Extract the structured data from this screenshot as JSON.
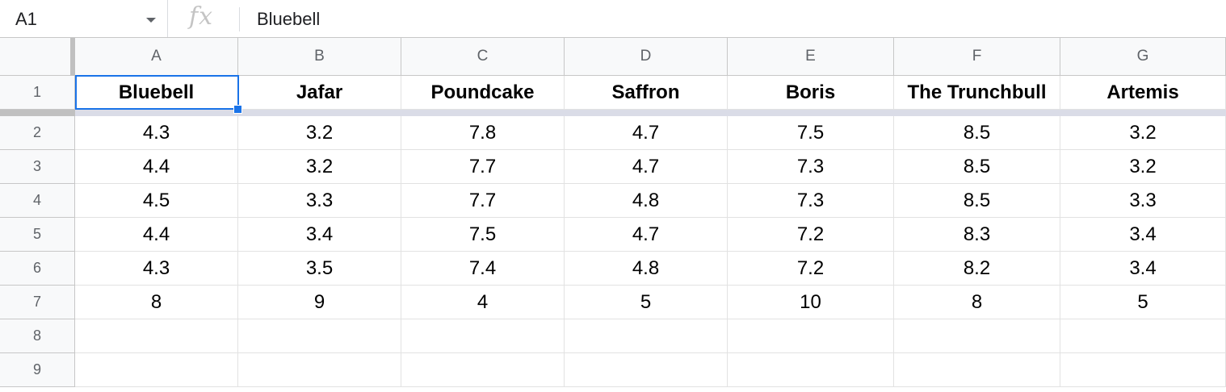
{
  "formula_bar": {
    "name_box": "A1",
    "fx_label": "fx",
    "content": "Bluebell"
  },
  "columns": [
    "A",
    "B",
    "C",
    "D",
    "E",
    "F",
    "G"
  ],
  "rows": [
    "1",
    "2",
    "3",
    "4",
    "5",
    "6",
    "7",
    "8",
    "9"
  ],
  "cells": [
    [
      "Bluebell",
      "Jafar",
      "Poundcake",
      "Saffron",
      "Boris",
      "The Trunchbull",
      "Artemis"
    ],
    [
      "4.3",
      "3.2",
      "7.8",
      "4.7",
      "7.5",
      "8.5",
      "3.2"
    ],
    [
      "4.4",
      "3.2",
      "7.7",
      "4.7",
      "7.3",
      "8.5",
      "3.2"
    ],
    [
      "4.5",
      "3.3",
      "7.7",
      "4.8",
      "7.3",
      "8.5",
      "3.3"
    ],
    [
      "4.4",
      "3.4",
      "7.5",
      "4.7",
      "7.2",
      "8.3",
      "3.4"
    ],
    [
      "4.3",
      "3.5",
      "7.4",
      "4.8",
      "7.2",
      "8.2",
      "3.4"
    ],
    [
      "8",
      "9",
      "4",
      "5",
      "10",
      "8",
      "5"
    ],
    [
      "",
      "",
      "",
      "",
      "",
      "",
      ""
    ],
    [
      "",
      "",
      "",
      "",
      "",
      "",
      ""
    ]
  ],
  "selected_cell": "A1",
  "colors": {
    "selection": "#1a73e8",
    "header_bg": "#f8f9fa",
    "freeze_bar": "#dadce7"
  }
}
